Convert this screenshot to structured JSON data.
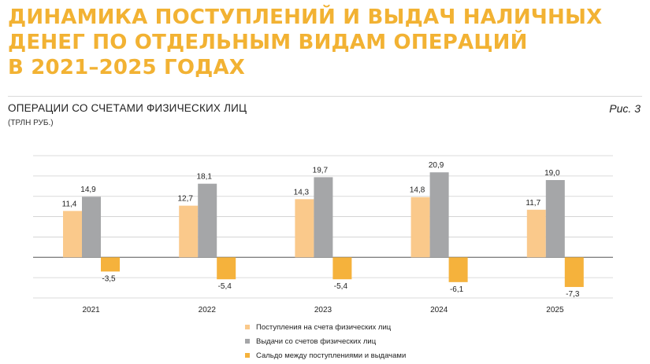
{
  "title_lines": [
    "ДИНАМИКА ПОСТУПЛЕНИЙ И ВЫДАЧ НАЛИЧНЫХ",
    "ДЕНЕГ ПО ОТДЕЛЬНЫМ ВИДАМ ОПЕРАЦИЙ",
    "В 2021–2025 ГОДАХ"
  ],
  "subtitle": "ОПЕРАЦИИ СО СЧЕТАМИ ФИЗИЧЕСКИХ ЛИЦ",
  "units": "(ТРЛН РУБ.)",
  "figure_label": "Рис. 3",
  "chart_data": {
    "type": "bar",
    "categories": [
      "2021",
      "2022",
      "2023",
      "2024",
      "2025"
    ],
    "series": [
      {
        "name": "Поступления на счета физических лиц",
        "color": "#fac98b",
        "values": [
          11.4,
          12.7,
          14.3,
          14.8,
          11.7
        ]
      },
      {
        "name": "Выдачи со счетов  физических лиц",
        "color": "#a5a6a8",
        "values": [
          14.9,
          18.1,
          19.7,
          20.9,
          19.0
        ]
      },
      {
        "name": "Сальдо между поступлениями и выдачами",
        "color": "#f5b23c",
        "values": [
          -3.5,
          -5.4,
          -5.4,
          -6.1,
          -7.3
        ]
      }
    ],
    "value_labels": [
      [
        "11,4",
        "12,7",
        "14,3",
        "14,8",
        "11,7"
      ],
      [
        "14,9",
        "18,1",
        "19,7",
        "20,9",
        "19,0"
      ],
      [
        "-3,5",
        "-5,4",
        "-5,4",
        "-6,1",
        "-7,3"
      ]
    ],
    "ylim": [
      -10,
      25
    ],
    "gridline_step": 5,
    "grid": true,
    "y_tick_labels_shown": false,
    "legend_position": "bottom"
  }
}
